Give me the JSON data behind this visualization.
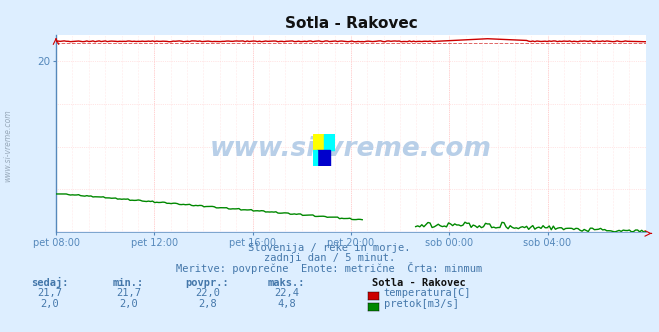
{
  "title": "Sotla - Rakovec",
  "bg_color": "#ddeeff",
  "plot_bg_color": "#ffffff",
  "outer_bg": "#ddeeff",
  "grid_h_color": "#ffcccc",
  "grid_v_color": "#ffcccc",
  "x_tick_labels": [
    "pet 08:00",
    "pet 12:00",
    "pet 16:00",
    "pet 20:00",
    "sob 00:00",
    "sob 04:00"
  ],
  "n_points": 288,
  "temp_level": 22.3,
  "temp_avg": 22.0,
  "temp_color": "#cc0000",
  "flow_color": "#008800",
  "height_color": "#0000bb",
  "axis_color": "#5588bb",
  "text_color": "#4477aa",
  "ylim": [
    0,
    23
  ],
  "ytick_val": 20,
  "subtitle1": "Slovenija / reke in morje.",
  "subtitle2": "zadnji dan / 5 minut.",
  "subtitle3": "Meritve: povprečne  Enote: metrične  Črta: minmum",
  "legend_title": "Sotla - Rakovec",
  "legend_rows": [
    {
      "sedaj": "21,7",
      "min": "21,7",
      "povpr": "22,0",
      "maks": "22,4",
      "label": "temperatura[C]",
      "color": "#cc0000"
    },
    {
      "sedaj": "2,0",
      "min": "2,0",
      "povpr": "2,8",
      "maks": "4,8",
      "label": "pretok[m3/s]",
      "color": "#008800"
    }
  ],
  "col_headers": [
    "sedaj:",
    "min.:",
    "povpr.:",
    "maks.:"
  ],
  "watermark": "www.si-vreme.com",
  "watermark_color": "#b8cfe8",
  "side_text": "www.si-vreme.com",
  "side_color": "#99aabb"
}
